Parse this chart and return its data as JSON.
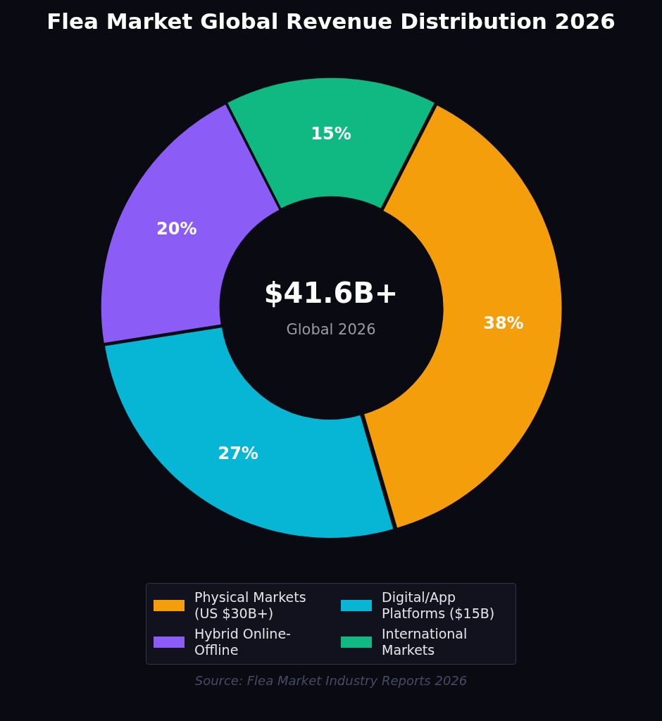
{
  "chart_data": {
    "type": "donut",
    "title": "Flea Market Global Revenue Distribution 2026",
    "categories": [
      "Physical Markets (US $30B+)",
      "Digital/App Platforms ($15B)",
      "Hybrid Online-Offline",
      "International Markets"
    ],
    "values": [
      38,
      27,
      20,
      15
    ],
    "colors": [
      "#f59e0b",
      "#06b6d4",
      "#8b5cf6",
      "#10b981"
    ],
    "value_labels": [
      "38%",
      "27%",
      "20%",
      "15%"
    ],
    "legend": "bottom",
    "annotations": [
      "$41.6B+",
      "Global 2026",
      "Source: Flea Market Industry Reports 2026"
    ]
  }
}
